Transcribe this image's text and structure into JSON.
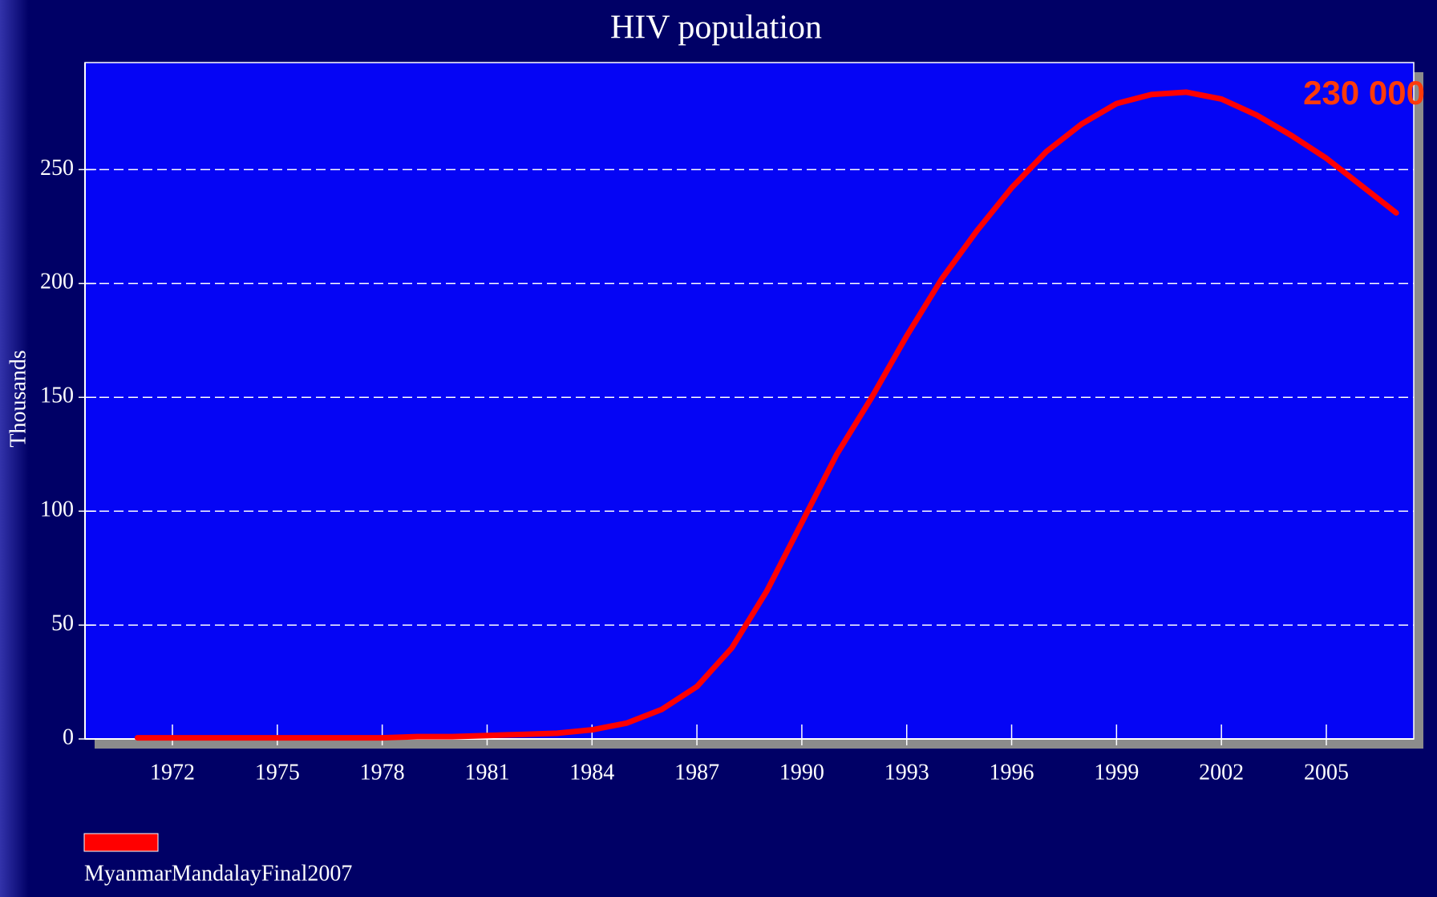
{
  "chart_data": {
    "type": "line",
    "title": "HIV population",
    "y_label": "Thousands",
    "annotation": "230 000",
    "x": [
      1971,
      1972,
      1973,
      1974,
      1975,
      1976,
      1977,
      1978,
      1979,
      1980,
      1981,
      1982,
      1983,
      1984,
      1985,
      1986,
      1987,
      1988,
      1989,
      1990,
      1991,
      1992,
      1993,
      1994,
      1995,
      1996,
      1997,
      1998,
      1999,
      2000,
      2001,
      2002,
      2003,
      2004,
      2005,
      2006,
      2007
    ],
    "series": [
      {
        "name": "MyanmarMandalayFinal2007",
        "color": "#ff0000",
        "values": [
          0.5,
          0.5,
          0.5,
          0.5,
          0.5,
          0.5,
          0.5,
          0.5,
          1,
          1,
          1.5,
          2,
          2.5,
          4,
          7,
          13,
          23,
          40,
          65,
          95,
          125,
          150,
          177,
          202,
          223,
          242,
          258,
          270,
          279,
          283,
          284,
          281,
          274,
          265,
          255,
          243,
          231
        ]
      }
    ],
    "xlim": [
      1969.5,
      2007.5
    ],
    "xticks": [
      1972,
      1975,
      1978,
      1981,
      1984,
      1987,
      1990,
      1993,
      1996,
      1999,
      2002,
      2005
    ],
    "ylim": [
      0,
      297
    ],
    "yticks": [
      0,
      50,
      100,
      150,
      200,
      250
    ],
    "grid": true
  }
}
